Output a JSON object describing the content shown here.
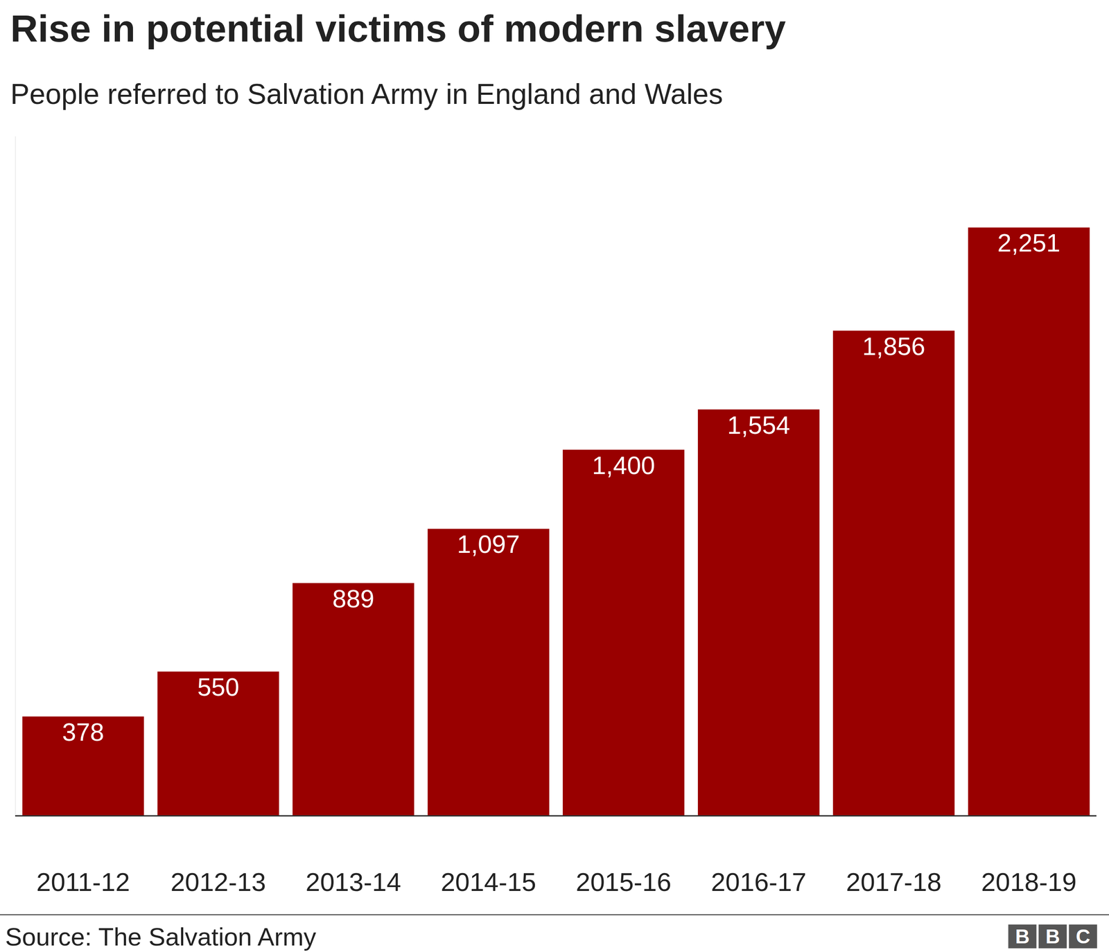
{
  "chart_data": {
    "type": "bar",
    "title": "Rise in potential victims of modern slavery",
    "subtitle": "People referred to Salvation Army in England and Wales",
    "source": "Source: The Salvation Army",
    "logo": "BBC",
    "categories": [
      "2011-12",
      "2012-13",
      "2013-14",
      "2014-15",
      "2015-16",
      "2016-17",
      "2017-18",
      "2018-19"
    ],
    "values": [
      378,
      550,
      889,
      1097,
      1400,
      1554,
      1856,
      2251
    ],
    "value_labels": [
      "378",
      "550",
      "889",
      "1,097",
      "1,400",
      "1,554",
      "1,856",
      "2,251"
    ],
    "color": "#990000",
    "ylim": [
      0,
      2600
    ],
    "grid": false,
    "data_labels": true,
    "tick_labels": "x"
  }
}
